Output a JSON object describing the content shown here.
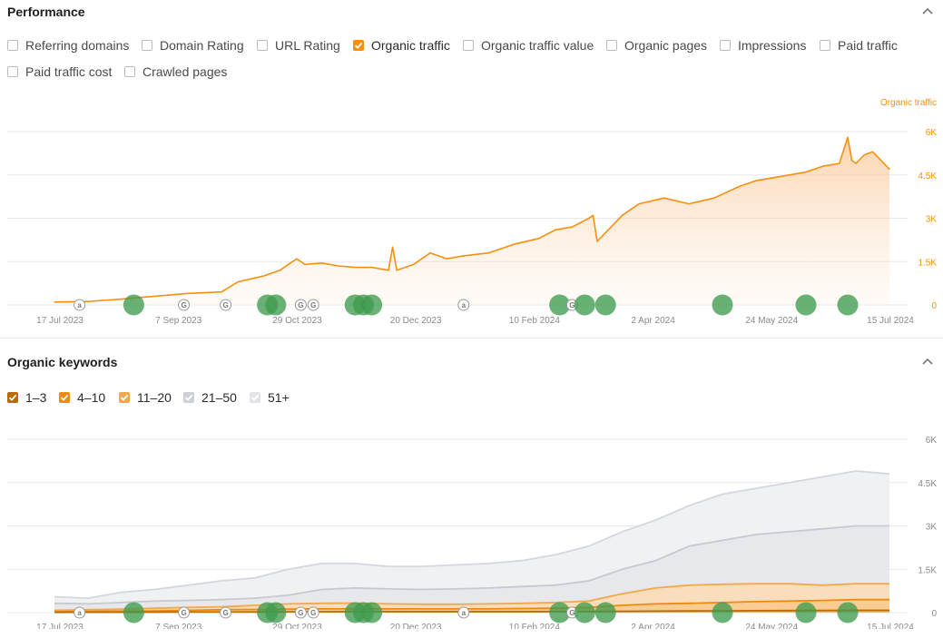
{
  "colors": {
    "accent": "#f5900f",
    "marker_green": "#3f9b4e",
    "gray_series": "#d7d9df",
    "kw_1_3": "#b96a00",
    "kw_4_10": "#ee8a10",
    "kw_11_20": "#f4a84a"
  },
  "performance": {
    "title": "Performance",
    "checkboxes": [
      {
        "label": "Referring domains",
        "checked": false
      },
      {
        "label": "Domain Rating",
        "checked": false
      },
      {
        "label": "URL Rating",
        "checked": false
      },
      {
        "label": "Organic traffic",
        "checked": true
      },
      {
        "label": "Organic traffic value",
        "checked": false
      },
      {
        "label": "Organic pages",
        "checked": false
      },
      {
        "label": "Impressions",
        "checked": false
      },
      {
        "label": "Paid traffic",
        "checked": false
      },
      {
        "label": "Paid traffic cost",
        "checked": false
      },
      {
        "label": "Crawled pages",
        "checked": false
      }
    ],
    "series_label": "Organic traffic"
  },
  "keywords": {
    "title": "Organic keywords",
    "checkboxes": [
      {
        "label": "1–3",
        "checked": true,
        "color": "#b96a00"
      },
      {
        "label": "4–10",
        "checked": true,
        "color": "#ee8a10"
      },
      {
        "label": "11–20",
        "checked": true,
        "color": "#f4a84a"
      },
      {
        "label": "21–50",
        "checked": true,
        "color": "#cdd0d6"
      },
      {
        "label": "51+",
        "checked": true,
        "color": "#e2e4e8"
      }
    ]
  },
  "chart_data": [
    {
      "type": "area",
      "title": "",
      "series_label": "Organic traffic",
      "x_ticks": [
        "17 Jul 2023",
        "7 Sep 2023",
        "29 Oct 2023",
        "20 Dec 2023",
        "10 Feb 2024",
        "2 Apr 2024",
        "24 May 2024",
        "15 Jul 2024"
      ],
      "y_ticks": [
        "0",
        "1.5K",
        "3K",
        "4.5K",
        "6K"
      ],
      "ylim": [
        0,
        6000
      ],
      "grid": true,
      "series": [
        {
          "name": "Organic traffic",
          "x": [
            0,
            0.04,
            0.08,
            0.12,
            0.16,
            0.2,
            0.22,
            0.25,
            0.27,
            0.29,
            0.3,
            0.32,
            0.34,
            0.36,
            0.38,
            0.4,
            0.405,
            0.41,
            0.43,
            0.45,
            0.47,
            0.49,
            0.52,
            0.55,
            0.58,
            0.6,
            0.62,
            0.64,
            0.645,
            0.65,
            0.68,
            0.7,
            0.73,
            0.76,
            0.79,
            0.82,
            0.84,
            0.86,
            0.88,
            0.9,
            0.92,
            0.94,
            0.95,
            0.955,
            0.96,
            0.97,
            0.98,
            0.99,
            1.0
          ],
          "values": [
            100,
            120,
            200,
            300,
            400,
            450,
            800,
            1000,
            1200,
            1600,
            1400,
            1450,
            1350,
            1300,
            1300,
            1200,
            2000,
            1200,
            1400,
            1800,
            1600,
            1700,
            1800,
            2100,
            2300,
            2600,
            2700,
            3000,
            3100,
            2200,
            3100,
            3500,
            3700,
            3500,
            3700,
            4100,
            4300,
            4400,
            4500,
            4600,
            4800,
            4900,
            5800,
            5000,
            4900,
            5200,
            5300,
            5000,
            4700
          ]
        }
      ]
    },
    {
      "type": "area",
      "title": "",
      "x_ticks": [
        "17 Jul 2023",
        "7 Sep 2023",
        "29 Oct 2023",
        "20 Dec 2023",
        "10 Feb 2024",
        "2 Apr 2024",
        "24 May 2024",
        "15 Jul 2024"
      ],
      "y_ticks": [
        "0",
        "1.5K",
        "3K",
        "4.5K",
        "6K"
      ],
      "ylim": [
        0,
        6000
      ],
      "grid": true,
      "x": [
        0,
        0.04,
        0.08,
        0.12,
        0.16,
        0.2,
        0.24,
        0.28,
        0.32,
        0.36,
        0.4,
        0.44,
        0.48,
        0.52,
        0.56,
        0.6,
        0.64,
        0.68,
        0.72,
        0.76,
        0.8,
        0.84,
        0.88,
        0.92,
        0.96,
        1.0
      ],
      "series": [
        {
          "name": "51+",
          "values": [
            550,
            500,
            700,
            800,
            950,
            1100,
            1200,
            1500,
            1700,
            1700,
            1600,
            1600,
            1650,
            1700,
            1800,
            2000,
            2300,
            2800,
            3200,
            3700,
            4100,
            4300,
            4500,
            4700,
            4900,
            4800
          ]
        },
        {
          "name": "21–50",
          "values": [
            320,
            300,
            350,
            400,
            420,
            450,
            500,
            600,
            800,
            850,
            820,
            800,
            820,
            850,
            900,
            950,
            1100,
            1500,
            1800,
            2300,
            2500,
            2700,
            2800,
            2900,
            3000,
            3000
          ]
        },
        {
          "name": "11–20",
          "values": [
            80,
            100,
            120,
            150,
            180,
            200,
            250,
            300,
            320,
            330,
            300,
            290,
            290,
            300,
            320,
            350,
            400,
            650,
            850,
            950,
            980,
            1000,
            1000,
            950,
            1000,
            1000
          ]
        },
        {
          "name": "4–10",
          "values": [
            30,
            40,
            50,
            60,
            80,
            100,
            110,
            120,
            130,
            130,
            130,
            130,
            130,
            130,
            140,
            150,
            180,
            250,
            300,
            320,
            350,
            380,
            400,
            420,
            450,
            450
          ]
        },
        {
          "name": "1–3",
          "values": [
            10,
            12,
            14,
            16,
            18,
            20,
            22,
            25,
            28,
            30,
            30,
            30,
            30,
            30,
            32,
            35,
            38,
            45,
            50,
            55,
            60,
            65,
            70,
            75,
            80,
            80
          ]
        }
      ]
    }
  ],
  "markers": [
    {
      "x": 0.03,
      "kind": "a"
    },
    {
      "x": 0.095,
      "kind": "dot"
    },
    {
      "x": 0.155,
      "kind": "g"
    },
    {
      "x": 0.205,
      "kind": "g"
    },
    {
      "x": 0.255,
      "kind": "dot"
    },
    {
      "x": 0.265,
      "kind": "dot"
    },
    {
      "x": 0.295,
      "kind": "g"
    },
    {
      "x": 0.31,
      "kind": "g"
    },
    {
      "x": 0.36,
      "kind": "dot"
    },
    {
      "x": 0.37,
      "kind": "dot"
    },
    {
      "x": 0.38,
      "kind": "dot"
    },
    {
      "x": 0.49,
      "kind": "a"
    },
    {
      "x": 0.605,
      "kind": "dot"
    },
    {
      "x": 0.62,
      "kind": "g"
    },
    {
      "x": 0.635,
      "kind": "dot"
    },
    {
      "x": 0.66,
      "kind": "dot"
    },
    {
      "x": 0.8,
      "kind": "dot"
    },
    {
      "x": 0.9,
      "kind": "dot"
    },
    {
      "x": 0.95,
      "kind": "dot"
    }
  ]
}
